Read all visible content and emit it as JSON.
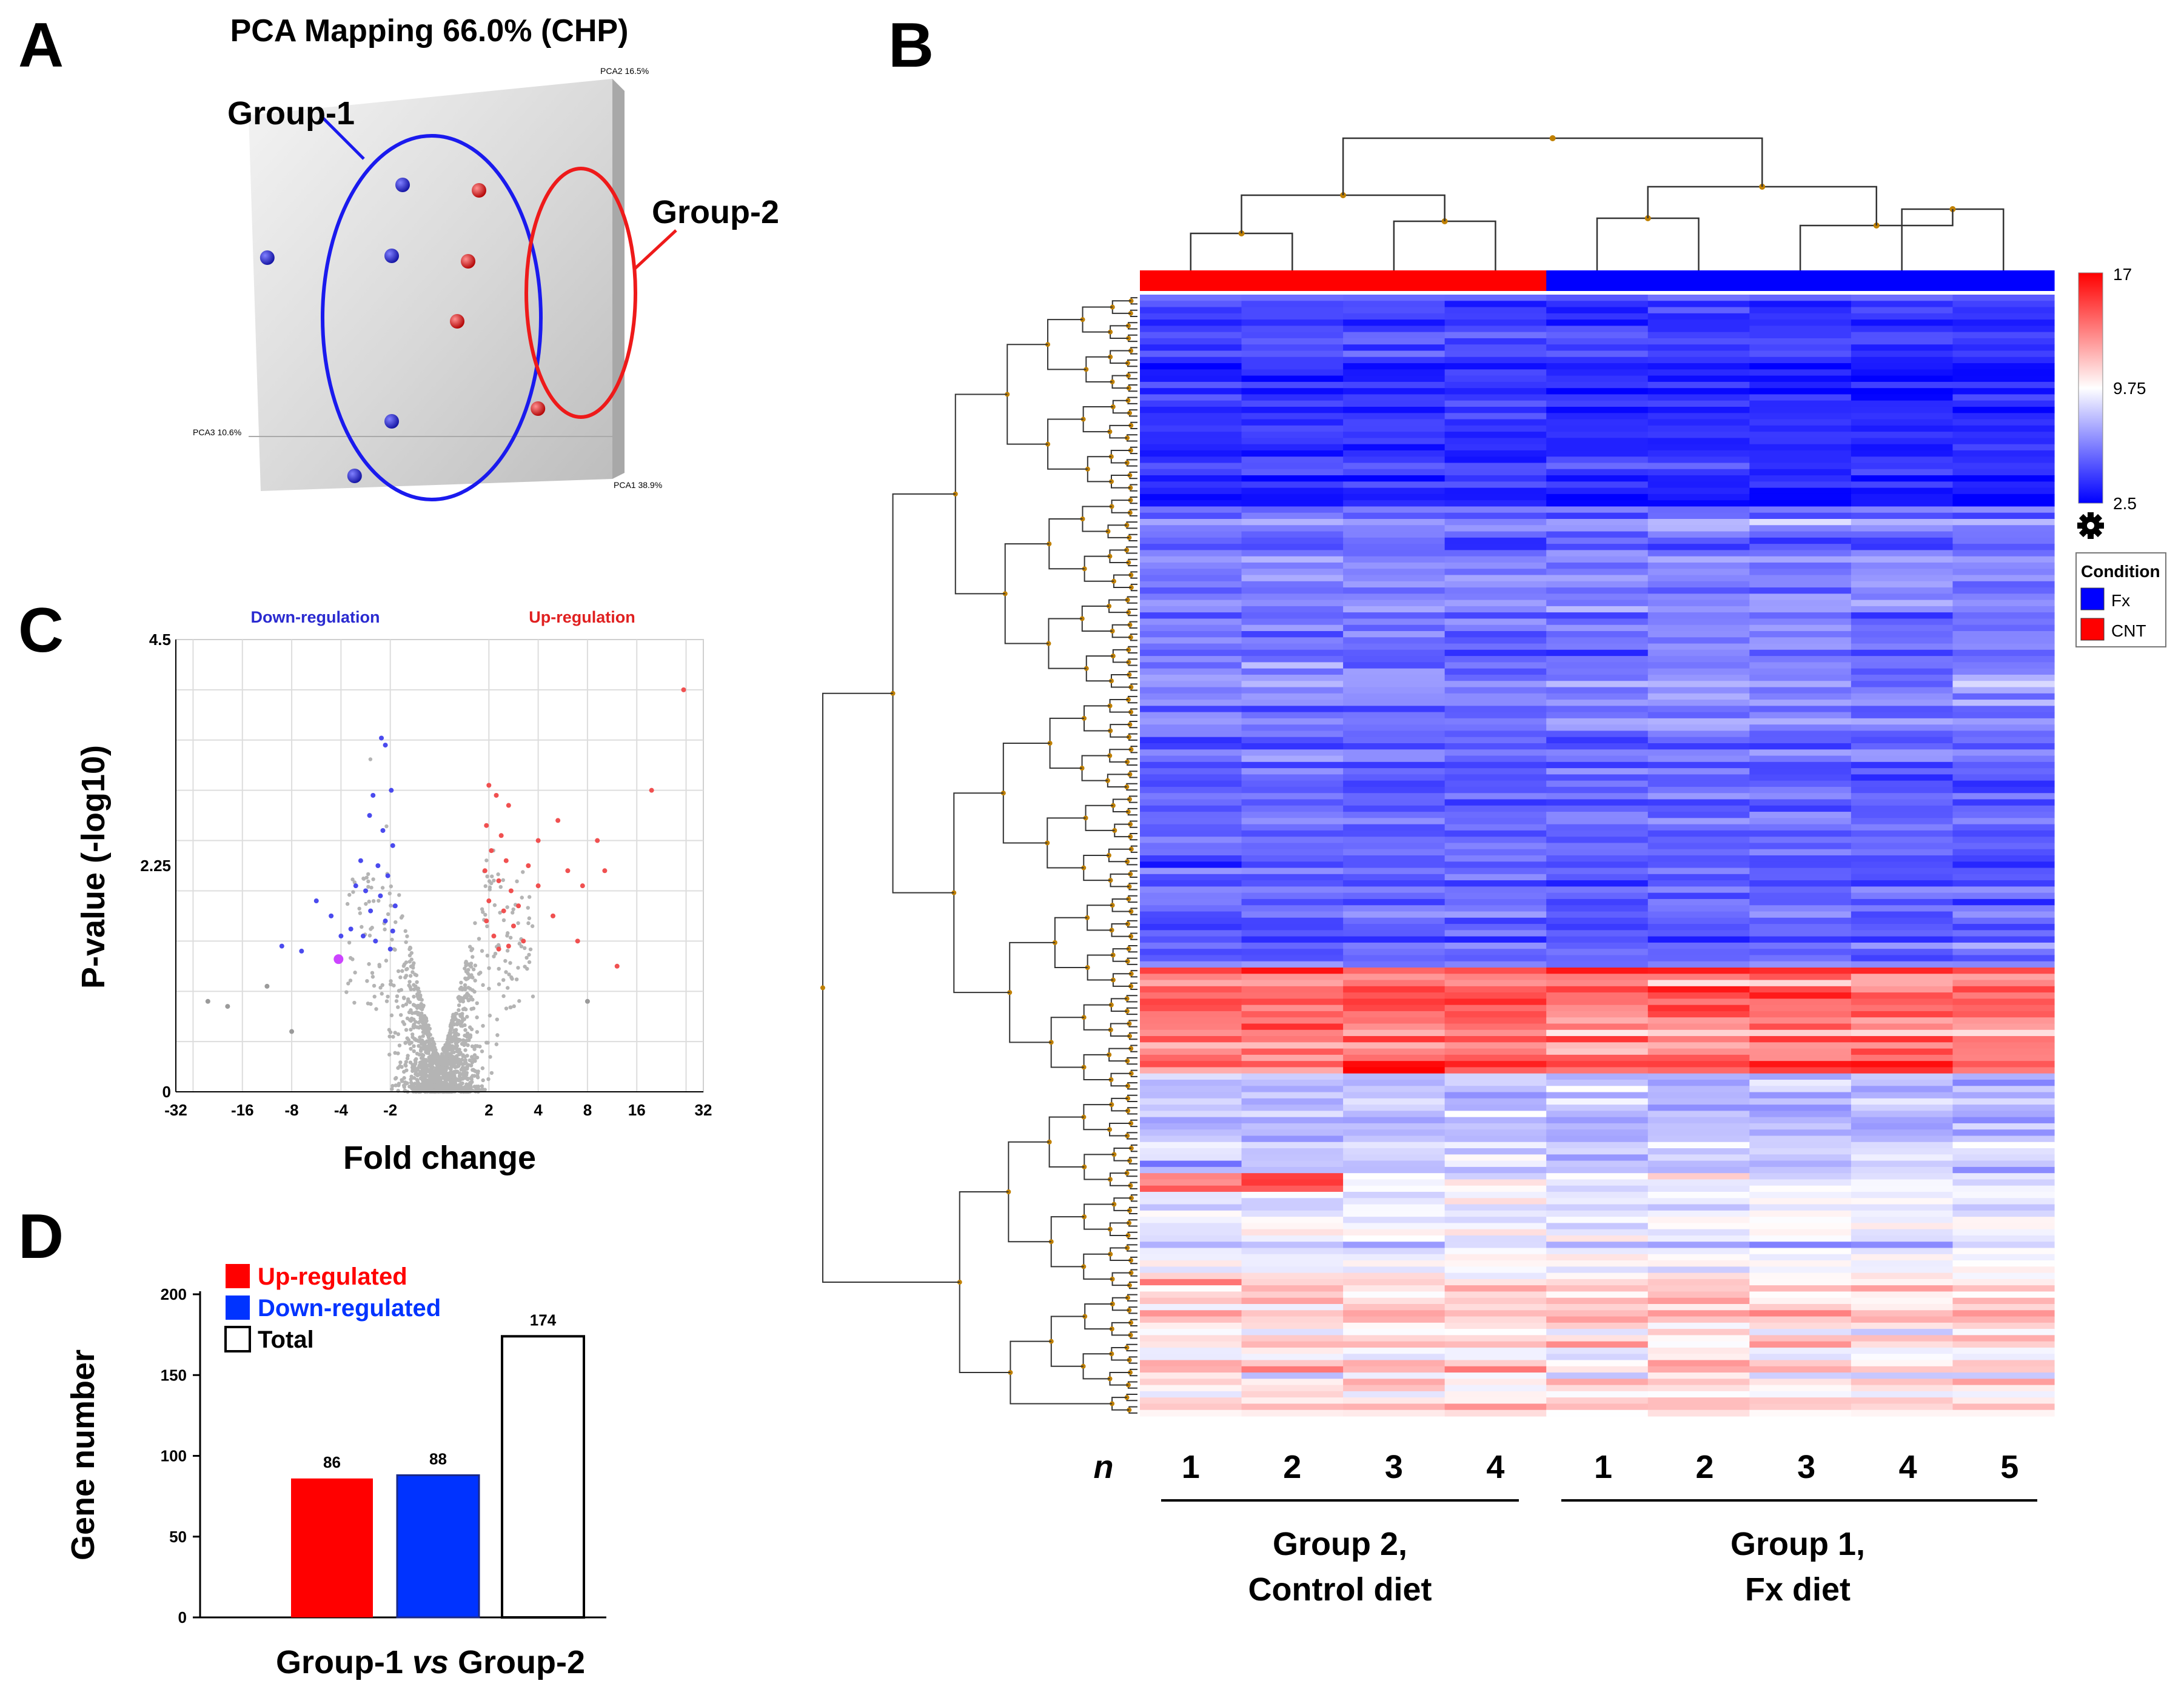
{
  "panels": {
    "A": "A",
    "B": "B",
    "C": "C",
    "D": "D"
  },
  "colors": {
    "red": "#ff0000",
    "blue": "#0033ff",
    "grey": "#b4b4b4",
    "purple": "#cc44ff"
  },
  "chart_data": [
    {
      "panel": "A",
      "type": "scatter",
      "title": "PCA Mapping 66.0% (CHP)",
      "axes": {
        "pca1": "PCA1 38.9%",
        "pca2": "PCA2 16.5%",
        "pca3": "PCA3 10.6%"
      },
      "groups": [
        {
          "name": "Group-1",
          "color": "#2020d0",
          "points": [
            {
              "pc1": -0.1,
              "pc2": 0.75
            },
            {
              "pc1": -0.72,
              "pc2": 0.35
            },
            {
              "pc1": -0.15,
              "pc2": 0.36
            },
            {
              "pc1": -0.15,
              "pc2": -0.55
            },
            {
              "pc1": -0.32,
              "pc2": -0.85
            }
          ]
        },
        {
          "name": "Group-2",
          "color": "#e02020",
          "points": [
            {
              "pc1": 0.25,
              "pc2": 0.72
            },
            {
              "pc1": 0.2,
              "pc2": 0.33
            },
            {
              "pc1": 0.15,
              "pc2": 0.0
            },
            {
              "pc1": 0.52,
              "pc2": -0.48
            }
          ]
        }
      ]
    },
    {
      "panel": "C",
      "type": "scatter",
      "title": "",
      "ylabel": "P-value (-log10)",
      "xlabel": "Fold change",
      "annotations": {
        "down": "Down-regulation",
        "up": "Up-regulation"
      },
      "ylim": [
        0,
        4.5
      ],
      "yticks": [
        "4.5",
        "2.25",
        "0"
      ],
      "xticks": [
        "-32",
        "-16",
        "-8",
        "-4",
        "-2",
        "2",
        "4",
        "8",
        "16",
        "32"
      ],
      "xtick_positions_log2": [
        -5,
        -4,
        -3,
        -2,
        -1,
        1,
        2,
        3,
        4,
        5
      ],
      "highlighted_points": {
        "down": [
          {
            "log2fc": -1.18,
            "p": 3.52
          },
          {
            "log2fc": -1.1,
            "p": 3.45
          },
          {
            "log2fc": -0.98,
            "p": 3.0
          },
          {
            "log2fc": -1.35,
            "p": 2.95
          },
          {
            "log2fc": -1.42,
            "p": 2.75
          },
          {
            "log2fc": -1.15,
            "p": 2.6
          },
          {
            "log2fc": -0.95,
            "p": 2.45
          },
          {
            "log2fc": -1.6,
            "p": 2.3
          },
          {
            "log2fc": -1.25,
            "p": 2.25
          },
          {
            "log2fc": -1.05,
            "p": 2.15
          },
          {
            "log2fc": -1.7,
            "p": 2.05
          },
          {
            "log2fc": -1.5,
            "p": 2.0
          },
          {
            "log2fc": -1.2,
            "p": 1.95
          },
          {
            "log2fc": -0.9,
            "p": 1.85
          },
          {
            "log2fc": -1.4,
            "p": 1.8
          },
          {
            "log2fc": -1.1,
            "p": 1.7
          },
          {
            "log2fc": -0.95,
            "p": 1.6
          },
          {
            "log2fc": -1.55,
            "p": 1.55
          },
          {
            "log2fc": -1.3,
            "p": 1.5
          },
          {
            "log2fc": -2.2,
            "p": 1.75
          },
          {
            "log2fc": -2.0,
            "p": 1.55
          },
          {
            "log2fc": -2.5,
            "p": 1.9
          },
          {
            "log2fc": -3.2,
            "p": 1.45
          },
          {
            "log2fc": -2.8,
            "p": 1.4
          },
          {
            "log2fc": -1.0,
            "p": 1.42
          },
          {
            "log2fc": -1.8,
            "p": 1.62
          }
        ],
        "up": [
          {
            "log2fc": 1.0,
            "p": 3.05
          },
          {
            "log2fc": 1.15,
            "p": 2.95
          },
          {
            "log2fc": 1.4,
            "p": 2.85
          },
          {
            "log2fc": 0.95,
            "p": 2.65
          },
          {
            "log2fc": 1.25,
            "p": 2.55
          },
          {
            "log2fc": 1.05,
            "p": 2.4
          },
          {
            "log2fc": 1.35,
            "p": 2.3
          },
          {
            "log2fc": 0.92,
            "p": 2.2
          },
          {
            "log2fc": 1.2,
            "p": 2.1
          },
          {
            "log2fc": 1.45,
            "p": 2.0
          },
          {
            "log2fc": 1.0,
            "p": 1.9
          },
          {
            "log2fc": 1.3,
            "p": 1.8
          },
          {
            "log2fc": 0.95,
            "p": 1.7
          },
          {
            "log2fc": 1.5,
            "p": 1.65
          },
          {
            "log2fc": 1.1,
            "p": 1.55
          },
          {
            "log2fc": 1.4,
            "p": 1.45
          },
          {
            "log2fc": 1.6,
            "p": 1.85
          },
          {
            "log2fc": 1.8,
            "p": 2.25
          },
          {
            "log2fc": 2.0,
            "p": 2.5
          },
          {
            "log2fc": 2.4,
            "p": 2.7
          },
          {
            "log2fc": 2.0,
            "p": 2.05
          },
          {
            "log2fc": 2.6,
            "p": 2.2
          },
          {
            "log2fc": 2.3,
            "p": 1.75
          },
          {
            "log2fc": 1.7,
            "p": 1.5
          },
          {
            "log2fc": 1.2,
            "p": 1.42
          },
          {
            "log2fc": 2.9,
            "p": 2.05
          }
        ],
        "far": [
          {
            "log2fc": 4.95,
            "p": 4.0
          },
          {
            "log2fc": 4.3,
            "p": 3.0
          },
          {
            "log2fc": 3.2,
            "p": 2.5
          },
          {
            "log2fc": 3.35,
            "p": 2.2
          },
          {
            "log2fc": 2.8,
            "p": 1.5
          },
          {
            "log2fc": 3.6,
            "p": 1.25
          },
          {
            "log2fc": -4.7,
            "p": 0.9
          },
          {
            "log2fc": -4.3,
            "p": 0.85
          },
          {
            "log2fc": -3.5,
            "p": 1.05
          },
          {
            "log2fc": -3.0,
            "p": 0.6
          },
          {
            "log2fc": 3.0,
            "p": 0.9
          }
        ],
        "purple": [
          {
            "log2fc": -2.05,
            "p": 1.32
          }
        ]
      }
    },
    {
      "panel": "D",
      "type": "bar",
      "title": "",
      "categories": [
        "Up-regulated",
        "Down-regulated",
        "Total"
      ],
      "values": [
        86,
        88,
        174
      ],
      "value_labels": [
        "86",
        "88",
        "174"
      ],
      "colors": [
        "#ff0000",
        "#0033ff",
        "#ffffff"
      ],
      "ylabel": "Gene number",
      "xlabel_parts": [
        "Group-1 ",
        "vs",
        " Group-2"
      ],
      "ylim": [
        0,
        200
      ],
      "yticks": [
        "0",
        "50",
        "100",
        "150",
        "200"
      ],
      "legend": [
        {
          "label": "Up-regulated",
          "color": "#ff0000"
        },
        {
          "label": "Down-regulated",
          "color": "#0033ff"
        },
        {
          "label": "Total",
          "color": "#ffffff"
        }
      ]
    },
    {
      "panel": "B",
      "type": "heatmap",
      "colorbar": {
        "max": "17",
        "mid": "9.75",
        "min": "2.5"
      },
      "condition_legend": {
        "title": "Condition",
        "items": [
          {
            "label": "Fx",
            "color": "#0000ff"
          },
          {
            "label": "CNT",
            "color": "#ff0000"
          }
        ]
      },
      "n_label": "n",
      "sample_labels": [
        "1",
        "2",
        "3",
        "4",
        "1",
        "2",
        "3",
        "4",
        "5"
      ],
      "sample_conditions": [
        "CNT",
        "CNT",
        "CNT",
        "CNT",
        "Fx",
        "Fx",
        "Fx",
        "Fx",
        "Fx"
      ],
      "group_labels": [
        {
          "line1": "Group 2,",
          "line2": "Control diet"
        },
        {
          "line1": "Group 1,",
          "line2": "Fx diet"
        }
      ],
      "row_blocks": [
        {
          "rows": 34,
          "mean": 4.0,
          "spread": 0.9
        },
        {
          "rows": 38,
          "mean": 6.0,
          "spread": 1.2
        },
        {
          "rows": 36,
          "mean": 5.2,
          "spread": 1.0
        },
        {
          "rows": 9,
          "mean": 14.2,
          "spread": 1.6
        },
        {
          "rows": 8,
          "mean": 13.4,
          "spread": 1.6
        },
        {
          "rows": 16,
          "mean": 7.8,
          "spread": 1.2
        },
        {
          "rows": 17,
          "mean": 9.2,
          "spread": 1.2
        },
        {
          "rows": 22,
          "mean": 10.6,
          "spread": 1.4
        }
      ]
    }
  ]
}
